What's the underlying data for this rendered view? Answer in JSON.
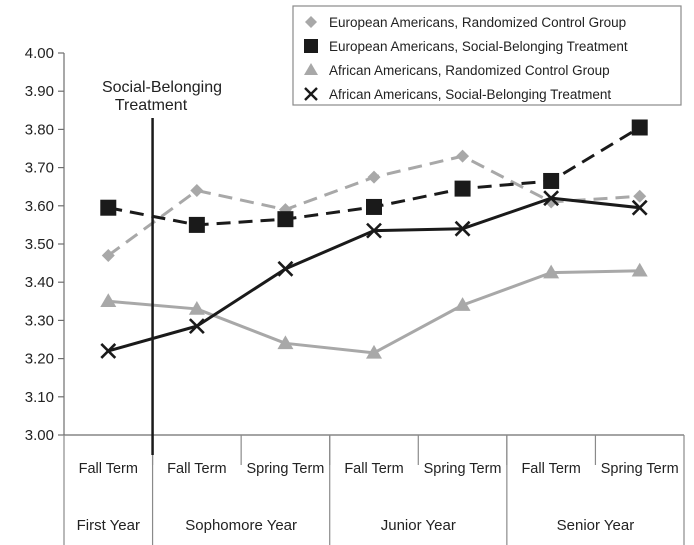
{
  "chart_data": {
    "type": "line",
    "title": "",
    "xlabel": "",
    "ylabel": "",
    "ylim": [
      3.0,
      4.0
    ],
    "y_ticks": [
      "3.00",
      "3.10",
      "3.20",
      "3.30",
      "3.40",
      "3.50",
      "3.60",
      "3.70",
      "3.80",
      "3.90",
      "4.00"
    ],
    "categories": [
      "Fall Term",
      "Fall Term",
      "Spring Term",
      "Fall Term",
      "Spring Term",
      "Fall Term",
      "Spring Term"
    ],
    "year_groups": [
      {
        "label": "First Year",
        "span": 1
      },
      {
        "label": "Sophomore Year",
        "span": 2
      },
      {
        "label": "Junior Year",
        "span": 2
      },
      {
        "label": "Senior Year",
        "span": 2
      }
    ],
    "annotation": {
      "line1": "Social-Belonging",
      "line2": "Treatment"
    },
    "legend_position": "top-right",
    "grid": false,
    "series": [
      {
        "name": "European Americans, Randomized Control Group",
        "color": "#a8a8a8",
        "marker": "diamond",
        "dash": "dashed",
        "values": [
          3.47,
          3.64,
          3.59,
          3.675,
          3.73,
          3.61,
          3.625
        ]
      },
      {
        "name": "European Americans, Social-Belonging Treatment",
        "color": "#1a1a1a",
        "marker": "square",
        "dash": "dashed",
        "values": [
          3.595,
          3.55,
          3.565,
          3.597,
          3.645,
          3.665,
          3.805
        ]
      },
      {
        "name": "African Americans, Randomized Control Group",
        "color": "#a8a8a8",
        "marker": "triangle",
        "dash": "solid",
        "values": [
          3.35,
          3.33,
          3.24,
          3.215,
          3.34,
          3.425,
          3.43
        ]
      },
      {
        "name": "African Americans, Social-Belonging Treatment",
        "color": "#1a1a1a",
        "marker": "x",
        "dash": "solid",
        "values": [
          3.22,
          3.285,
          3.435,
          3.535,
          3.54,
          3.62,
          3.595
        ]
      }
    ]
  }
}
